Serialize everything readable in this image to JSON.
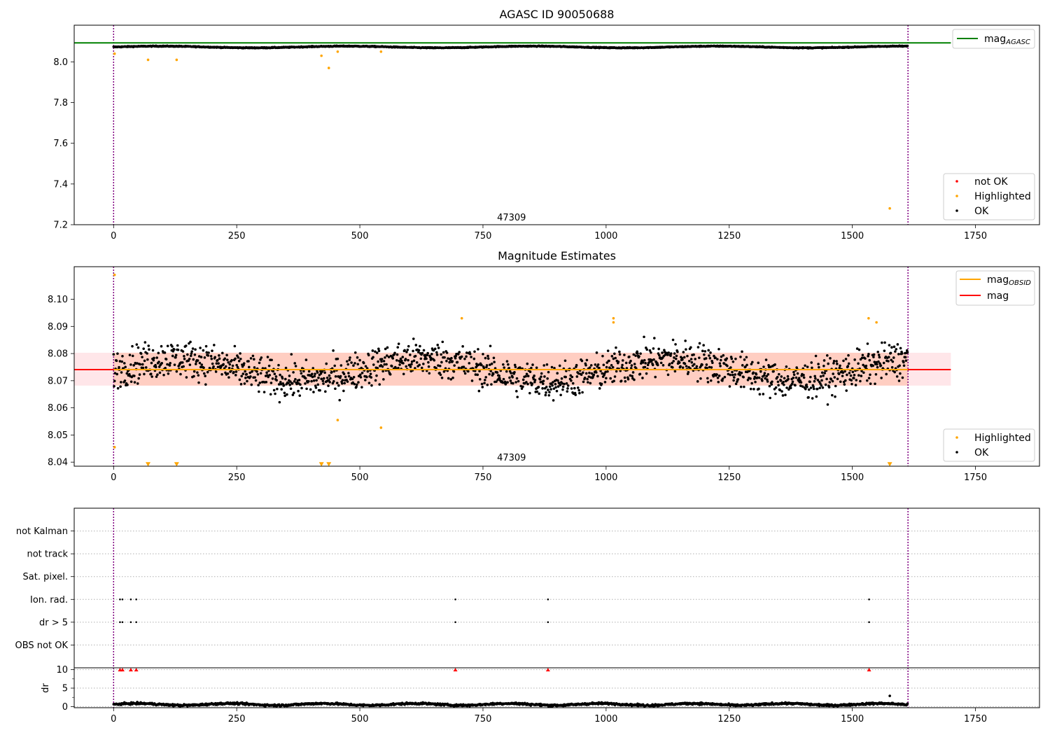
{
  "chart_data": [
    {
      "id": "p1",
      "type": "scatter",
      "title": "AGASC ID 90050688",
      "xlim": [
        -80,
        1880
      ],
      "ylim": [
        7.2,
        8.18
      ],
      "xticks": [
        0,
        250,
        500,
        750,
        1000,
        1250,
        1500,
        1750
      ],
      "yticks": [
        7.2,
        7.4,
        7.6,
        7.8,
        8.0
      ],
      "ytick_labels": [
        "7.2",
        "7.4",
        "7.6",
        "7.8",
        "8.0"
      ],
      "obs_lines": [
        0,
        1613
      ],
      "annotations": [
        {
          "x": 808,
          "y": 7.22,
          "text": "47309"
        }
      ],
      "hlines": [
        {
          "name": "mag",
          "subscript": "AGASC",
          "y": 8.093,
          "color": "#008000",
          "xmin": -80,
          "xmax": 1700
        }
      ],
      "ok_series": {
        "name": "OK",
        "color": "#000000",
        "n": 1613,
        "base": 8.073,
        "amp": 0.004,
        "noise": 0.004
      },
      "highlighted": {
        "name": "Highlighted",
        "color": "#ffa500",
        "points": [
          [
            2,
            8.04
          ],
          [
            70,
            8.01
          ],
          [
            128,
            8.01
          ],
          [
            422,
            8.03
          ],
          [
            437,
            7.97
          ],
          [
            455,
            8.05
          ],
          [
            543,
            8.05
          ],
          [
            1576,
            7.28
          ]
        ]
      },
      "not_ok": {
        "name": "not OK",
        "color": "#ff0000",
        "points": []
      },
      "legend_upper": [
        "mag_AGASC"
      ],
      "legend_lower": [
        "not OK",
        "Highlighted",
        "OK"
      ]
    },
    {
      "id": "p2",
      "type": "scatter",
      "title": "Magnitude Estimates",
      "xlim": [
        -80,
        1880
      ],
      "ylim": [
        8.0385,
        8.112
      ],
      "xticks": [
        0,
        250,
        500,
        750,
        1000,
        1250,
        1500,
        1750
      ],
      "yticks": [
        8.04,
        8.05,
        8.06,
        8.07,
        8.08,
        8.09,
        8.1
      ],
      "ytick_labels": [
        "8.04",
        "8.05",
        "8.06",
        "8.07",
        "8.08",
        "8.09",
        "8.10"
      ],
      "obs_lines": [
        0,
        1613
      ],
      "annotations": [
        {
          "x": 808,
          "y": 8.0405,
          "text": "47309"
        }
      ],
      "hlines": [
        {
          "name": "mag",
          "y": 8.0741,
          "color": "#ff0000",
          "xmin": -80,
          "xmax": 1700
        },
        {
          "name": "mag",
          "subscript": "OBSID",
          "y": 8.0741,
          "color": "#ffa500",
          "xmin": 0,
          "xmax": 1613
        }
      ],
      "bands": [
        {
          "y0": 8.0682,
          "y1": 8.0803,
          "xmin": -80,
          "xmax": 1700,
          "color": "#ffb6c1",
          "opacity": 0.35
        },
        {
          "y0": 8.0682,
          "y1": 8.0803,
          "xmin": 0,
          "xmax": 1613,
          "color": "#ffa07a",
          "opacity": 0.35
        }
      ],
      "ok_series": {
        "name": "OK",
        "color": "#000000",
        "n": 1613,
        "base": 8.0741,
        "amp": 0.004,
        "noise": 0.0065
      },
      "highlighted": {
        "name": "Highlighted",
        "color": "#ffa500",
        "points": [
          [
            2,
            8.109
          ],
          [
            2,
            8.0455
          ],
          [
            707,
            8.093
          ],
          [
            1015,
            8.093
          ],
          [
            1015,
            8.0915
          ],
          [
            1533,
            8.093
          ],
          [
            1549,
            8.0915
          ],
          [
            455,
            8.0555
          ],
          [
            543,
            8.0527
          ]
        ]
      },
      "clipped": {
        "name": "Highlighted",
        "color": "#ffa500",
        "y": 8.0392,
        "x": [
          70,
          128,
          422,
          437,
          1576
        ]
      },
      "legend_upper": [
        "mag_OBSID",
        "mag"
      ],
      "legend_lower": [
        "Highlighted",
        "OK"
      ]
    },
    {
      "id": "p3",
      "type": "scatter",
      "xlim": [
        -80,
        1880
      ],
      "xticks": [
        0,
        250,
        500,
        750,
        1000,
        1250,
        1500,
        1750
      ],
      "obs_lines": [
        0,
        1613
      ],
      "categories": [
        "not Kalman",
        "not track",
        "Sat. pixel.",
        "Ion. rad.",
        "dr > 5",
        "OBS not OK"
      ],
      "flag_points": {
        "Ion. rad.": [
          13,
          18,
          35,
          46,
          694,
          882,
          1534
        ],
        "dr > 5": [
          13,
          18,
          35,
          46,
          694,
          882,
          1534
        ]
      },
      "color": "#000000"
    },
    {
      "id": "p4",
      "type": "scatter",
      "xlim": [
        -80,
        1880
      ],
      "ylim": [
        -0.3,
        10.5
      ],
      "ylabel": "dr",
      "xticks": [
        0,
        250,
        500,
        750,
        1000,
        1250,
        1500,
        1750
      ],
      "yticks": [
        0,
        5,
        10
      ],
      "ytick_labels": [
        "0",
        "5",
        "10"
      ],
      "obs_lines": [
        0,
        1613
      ],
      "dr_series": {
        "color": "#000000",
        "n": 1613,
        "base": 0.6,
        "noise": 0.25
      },
      "dr_outliers": [
        [
          1576,
          2.9
        ]
      ],
      "clipped_red": {
        "color": "#ff0000",
        "y": 10,
        "x": [
          13,
          18,
          35,
          46,
          694,
          882,
          1534
        ]
      }
    }
  ]
}
